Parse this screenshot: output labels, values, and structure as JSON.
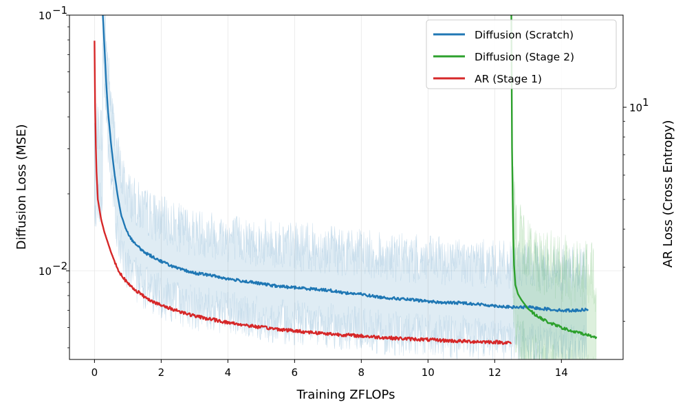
{
  "chart_data": {
    "type": "line",
    "xlabel": "Training ZFLOPs",
    "ylabel_left": "Diffusion Loss (MSE)",
    "ylabel_right": "AR Loss (Cross Entropy)",
    "xlim": [
      -0.75,
      15.85
    ],
    "ylim_left": [
      0.0045,
      0.1
    ],
    "ylim_right": [
      1.5,
      20.0
    ],
    "xticks": [
      0,
      2,
      4,
      6,
      8,
      10,
      12,
      14
    ],
    "xtick_labels": [
      "0",
      "2",
      "4",
      "6",
      "8",
      "10",
      "12",
      "14"
    ],
    "yticks_left_labels": [
      {
        "value": 0.1,
        "base": "10",
        "exp": "−1"
      },
      {
        "value": 0.01,
        "base": "10",
        "exp": "−2"
      }
    ],
    "yticks_right_labels": [
      {
        "value": 10,
        "base": "10",
        "exp": "1"
      }
    ],
    "grid": true,
    "legend": {
      "position": "top-right"
    },
    "series": [
      {
        "name": "Diffusion (Scratch)",
        "color": "#1f77b4",
        "axis": "left",
        "x": [
          0.25,
          0.3,
          0.35,
          0.4,
          0.5,
          0.6,
          0.7,
          0.8,
          1.0,
          1.2,
          1.5,
          2.0,
          2.5,
          3.0,
          3.5,
          4.0,
          4.5,
          5.0,
          5.5,
          6.0,
          6.5,
          7.0,
          7.5,
          8.0,
          8.5,
          9.0,
          9.5,
          10.0,
          10.5,
          11.0,
          11.5,
          12.0,
          12.5,
          13.0,
          13.5,
          14.0,
          14.5,
          14.8
        ],
        "y": [
          0.1,
          0.075,
          0.055,
          0.043,
          0.031,
          0.024,
          0.0195,
          0.0165,
          0.014,
          0.0128,
          0.0118,
          0.0109,
          0.0102,
          0.0098,
          0.0096,
          0.0093,
          0.0091,
          0.0089,
          0.0087,
          0.0086,
          0.0085,
          0.0084,
          0.0082,
          0.0081,
          0.0079,
          0.0078,
          0.0077,
          0.0076,
          0.0075,
          0.0075,
          0.0074,
          0.0073,
          0.0072,
          0.0072,
          0.0071,
          0.007,
          0.007,
          0.0071
        ]
      },
      {
        "name": "Diffusion (Stage 2)",
        "color": "#2ca02c",
        "axis": "left",
        "x": [
          12.5,
          12.52,
          12.55,
          12.58,
          12.62,
          12.7,
          12.8,
          13.0,
          13.3,
          13.6,
          14.0,
          14.3,
          14.6,
          15.0,
          15.05
        ],
        "y": [
          0.1,
          0.03,
          0.015,
          0.0105,
          0.0088,
          0.0081,
          0.0077,
          0.0071,
          0.0066,
          0.0063,
          0.006,
          0.0058,
          0.0057,
          0.0055,
          0.0055
        ]
      },
      {
        "name": "AR (Stage 1)",
        "color": "#d62728",
        "axis": "right",
        "x": [
          0.0,
          0.02,
          0.05,
          0.1,
          0.2,
          0.3,
          0.5,
          0.7,
          1.0,
          1.5,
          2.0,
          3.0,
          4.0,
          5.0,
          6.0,
          7.0,
          8.0,
          9.0,
          10.0,
          11.0,
          12.0,
          12.5
        ],
        "y": [
          16.5,
          10.0,
          6.5,
          5.0,
          4.3,
          3.9,
          3.35,
          2.95,
          2.65,
          2.4,
          2.25,
          2.08,
          1.98,
          1.91,
          1.86,
          1.82,
          1.79,
          1.76,
          1.74,
          1.72,
          1.71,
          1.7
        ]
      }
    ],
    "noise_bands": [
      {
        "series": "Diffusion (Scratch)",
        "color": "#1f77b4",
        "x_range": [
          0.0,
          14.75
        ]
      },
      {
        "series": "Diffusion (Stage 2)",
        "color": "#2ca02c",
        "x_range": [
          12.5,
          15.05
        ]
      }
    ]
  }
}
